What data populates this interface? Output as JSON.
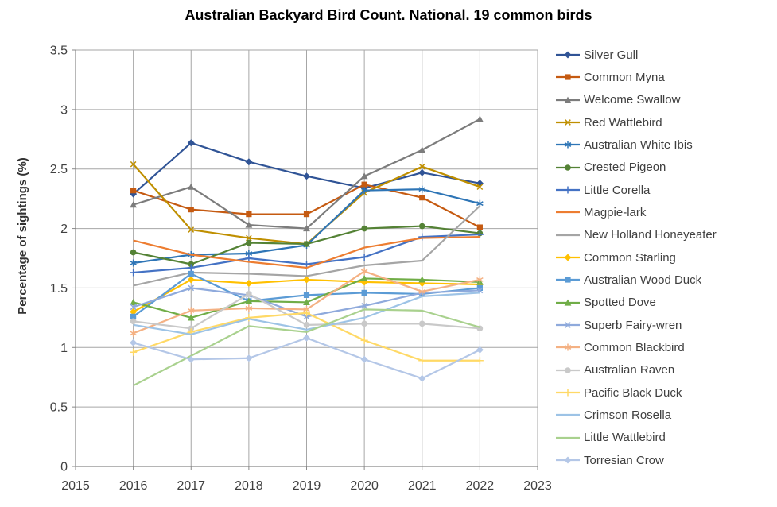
{
  "title": "Australian Backyard Bird Count. National. 19 common birds",
  "y_axis_label": "Percentage of sightings (%)",
  "chart_data": {
    "type": "line",
    "x": [
      2016,
      2017,
      2018,
      2019,
      2020,
      2021,
      2022
    ],
    "x_ticks": [
      2015,
      2016,
      2017,
      2018,
      2019,
      2020,
      2021,
      2022,
      2023
    ],
    "y_ticks": [
      0,
      0.5,
      1,
      1.5,
      2,
      2.5,
      3,
      3.5
    ],
    "xlim": [
      2015,
      2023
    ],
    "ylim": [
      0,
      3.5
    ],
    "grid": true,
    "grid_color": "#A6A6A6",
    "axis_color": "#898989",
    "tick_label_color": "#404040",
    "legend_position": "right",
    "series": [
      {
        "name": "Silver Gull",
        "color": "#305496",
        "marker": "diamond",
        "values": [
          2.29,
          2.72,
          2.56,
          2.44,
          2.34,
          2.47,
          2.38
        ]
      },
      {
        "name": "Common Myna",
        "color": "#C55A11",
        "marker": "square",
        "values": [
          2.32,
          2.16,
          2.12,
          2.12,
          2.37,
          2.26,
          2.01
        ]
      },
      {
        "name": "Welcome Swallow",
        "color": "#7C7C7C",
        "marker": "triangle",
        "values": [
          2.2,
          2.35,
          2.03,
          2.0,
          2.44,
          2.66,
          2.92
        ]
      },
      {
        "name": "Red Wattlebird",
        "color": "#BF8F00",
        "marker": "x",
        "values": [
          2.54,
          1.99,
          1.92,
          1.87,
          2.3,
          2.52,
          2.35
        ]
      },
      {
        "name": "Australian White Ibis",
        "color": "#2E75B6",
        "marker": "star",
        "values": [
          1.71,
          1.78,
          1.79,
          1.86,
          2.32,
          2.33,
          2.21
        ]
      },
      {
        "name": "Crested Pigeon",
        "color": "#548235",
        "marker": "circle",
        "values": [
          1.8,
          1.7,
          1.88,
          1.87,
          2.0,
          2.02,
          1.96
        ]
      },
      {
        "name": "Little Corella",
        "color": "#4472C4",
        "marker": "plus",
        "values": [
          1.63,
          1.67,
          1.75,
          1.7,
          1.76,
          1.93,
          1.95
        ]
      },
      {
        "name": "Magpie-lark",
        "color": "#ED7D31",
        "marker": "none",
        "values": [
          1.9,
          1.78,
          1.72,
          1.67,
          1.84,
          1.92,
          1.93
        ]
      },
      {
        "name": "New Holland Honeyeater",
        "color": "#A5A5A5",
        "marker": "none",
        "values": [
          1.52,
          1.63,
          1.62,
          1.6,
          1.69,
          1.73,
          2.19
        ]
      },
      {
        "name": "Common Starling",
        "color": "#FFC000",
        "marker": "diamond",
        "values": [
          1.3,
          1.57,
          1.54,
          1.57,
          1.55,
          1.54,
          1.53
        ]
      },
      {
        "name": "Australian Wood Duck",
        "color": "#5B9BD5",
        "marker": "square",
        "values": [
          1.26,
          1.62,
          1.39,
          1.44,
          1.46,
          1.45,
          1.5
        ]
      },
      {
        "name": "Spotted Dove",
        "color": "#70AD47",
        "marker": "triangle",
        "values": [
          1.38,
          1.25,
          1.39,
          1.38,
          1.58,
          1.57,
          1.55
        ]
      },
      {
        "name": "Superb Fairy-wren",
        "color": "#8FAADC",
        "marker": "x",
        "values": [
          1.34,
          1.5,
          1.44,
          1.26,
          1.35,
          1.46,
          1.48
        ]
      },
      {
        "name": "Common Blackbird",
        "color": "#F4B183",
        "marker": "star",
        "values": [
          1.12,
          1.31,
          1.33,
          1.32,
          1.64,
          1.47,
          1.57
        ]
      },
      {
        "name": "Australian Raven",
        "color": "#C9C9C9",
        "marker": "circle",
        "values": [
          1.22,
          1.16,
          1.45,
          1.19,
          1.2,
          1.2,
          1.16
        ]
      },
      {
        "name": "Pacific Black Duck",
        "color": "#FFD966",
        "marker": "plus",
        "values": [
          0.96,
          1.13,
          1.25,
          1.29,
          1.06,
          0.89,
          0.89
        ]
      },
      {
        "name": "Crimson Rosella",
        "color": "#9DC3E6",
        "marker": "none",
        "values": [
          1.19,
          1.11,
          1.24,
          1.15,
          1.25,
          1.43,
          1.46
        ]
      },
      {
        "name": "Little Wattlebird",
        "color": "#A9D18E",
        "marker": "none",
        "values": [
          0.68,
          0.93,
          1.18,
          1.13,
          1.32,
          1.31,
          1.17
        ]
      },
      {
        "name": "Torresian Crow",
        "color": "#B4C7E7",
        "marker": "diamond",
        "values": [
          1.04,
          0.9,
          0.91,
          1.08,
          0.9,
          0.74,
          0.98
        ]
      }
    ]
  }
}
